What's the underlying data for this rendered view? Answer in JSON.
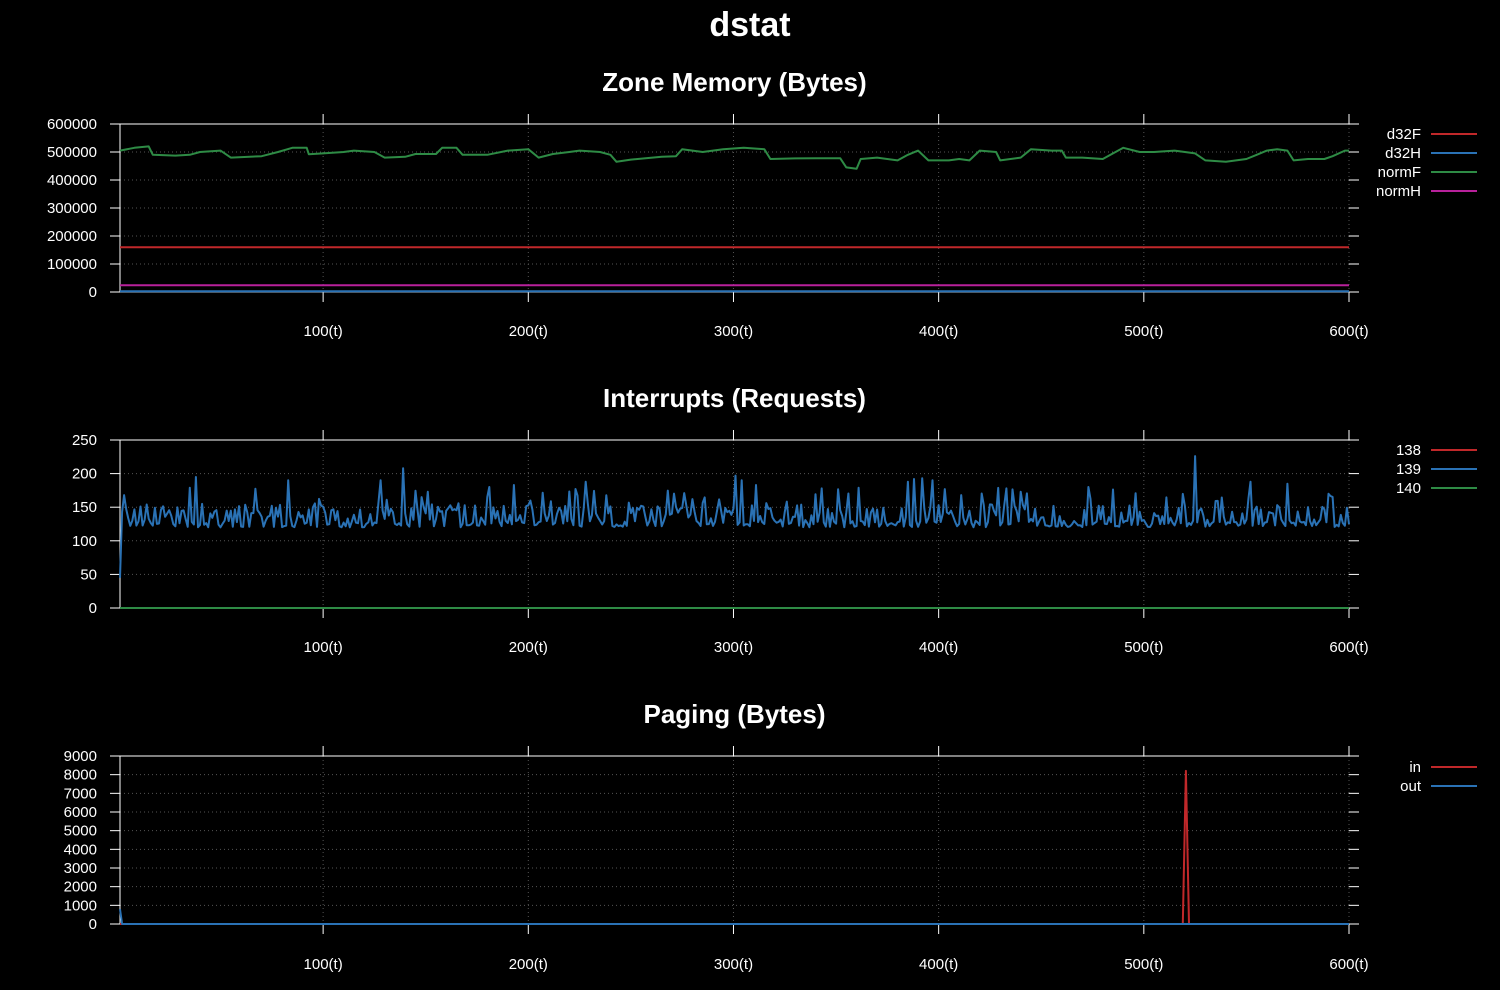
{
  "title": "dstat",
  "colors": {
    "red": "#c0282a",
    "blue": "#2a72b5",
    "green": "#2e8b45",
    "magenta": "#b8219b",
    "axis": "#ffffff",
    "grid": "#555555",
    "background": "#000000"
  },
  "chart_data": [
    {
      "type": "line",
      "title": "Zone Memory (Bytes)",
      "xlim": [
        1,
        600
      ],
      "ylim": [
        0,
        600000
      ],
      "grid": true,
      "legend_position": "right",
      "x_ticks": [
        "100(t)",
        "200(t)",
        "300(t)",
        "400(t)",
        "500(t)",
        "600(t)"
      ],
      "x_tick_values": [
        100,
        200,
        300,
        400,
        500,
        600
      ],
      "y_ticks": [
        "0",
        "100000",
        "200000",
        "300000",
        "400000",
        "500000",
        "600000"
      ],
      "y_tick_values": [
        0,
        100000,
        200000,
        300000,
        400000,
        500000,
        600000
      ],
      "series": [
        {
          "name": "d32F",
          "color": "#c0282a",
          "points": [
            [
              1,
              160000
            ],
            [
              600,
              160000
            ]
          ]
        },
        {
          "name": "d32H",
          "color": "#2a72b5",
          "points": [
            [
              1,
              3000
            ],
            [
              600,
              3000
            ]
          ]
        },
        {
          "name": "normF",
          "color": "#2e8b45",
          "points": [
            [
              1,
              505000
            ],
            [
              8,
              515000
            ],
            [
              15,
              520000
            ],
            [
              17,
              490000
            ],
            [
              28,
              487000
            ],
            [
              35,
              490000
            ],
            [
              40,
              500000
            ],
            [
              50,
              505000
            ],
            [
              55,
              480000
            ],
            [
              70,
              485000
            ],
            [
              78,
              500000
            ],
            [
              85,
              515000
            ],
            [
              92,
              515000
            ],
            [
              93,
              492000
            ],
            [
              100,
              495000
            ],
            [
              110,
              500000
            ],
            [
              115,
              505000
            ],
            [
              125,
              500000
            ],
            [
              130,
              480000
            ],
            [
              140,
              483000
            ],
            [
              145,
              493000
            ],
            [
              155,
              493000
            ],
            [
              158,
              515000
            ],
            [
              165,
              515000
            ],
            [
              168,
              490000
            ],
            [
              180,
              490000
            ],
            [
              190,
              505000
            ],
            [
              200,
              510000
            ],
            [
              205,
              480000
            ],
            [
              212,
              493000
            ],
            [
              220,
              500000
            ],
            [
              225,
              505000
            ],
            [
              235,
              500000
            ],
            [
              240,
              490000
            ],
            [
              243,
              465000
            ],
            [
              250,
              473000
            ],
            [
              265,
              483000
            ],
            [
              272,
              485000
            ],
            [
              275,
              510000
            ],
            [
              285,
              500000
            ],
            [
              295,
              510000
            ],
            [
              305,
              515000
            ],
            [
              315,
              510000
            ],
            [
              318,
              475000
            ],
            [
              330,
              477000
            ],
            [
              340,
              478000
            ],
            [
              352,
              478000
            ],
            [
              355,
              445000
            ],
            [
              360,
              440000
            ],
            [
              362,
              475000
            ],
            [
              370,
              480000
            ],
            [
              380,
              470000
            ],
            [
              385,
              490000
            ],
            [
              390,
              505000
            ],
            [
              395,
              470000
            ],
            [
              405,
              470000
            ],
            [
              410,
              475000
            ],
            [
              415,
              470000
            ],
            [
              420,
              505000
            ],
            [
              428,
              500000
            ],
            [
              430,
              470000
            ],
            [
              440,
              480000
            ],
            [
              445,
              510000
            ],
            [
              455,
              505000
            ],
            [
              460,
              505000
            ],
            [
              462,
              480000
            ],
            [
              470,
              480000
            ],
            [
              480,
              475000
            ],
            [
              485,
              495000
            ],
            [
              490,
              515000
            ],
            [
              498,
              500000
            ],
            [
              505,
              500000
            ],
            [
              515,
              505000
            ],
            [
              520,
              500000
            ],
            [
              525,
              495000
            ],
            [
              530,
              470000
            ],
            [
              540,
              465000
            ],
            [
              550,
              475000
            ],
            [
              555,
              490000
            ],
            [
              560,
              505000
            ],
            [
              565,
              510000
            ],
            [
              570,
              505000
            ],
            [
              573,
              470000
            ],
            [
              580,
              475000
            ],
            [
              588,
              475000
            ],
            [
              592,
              485000
            ],
            [
              598,
              505000
            ],
            [
              600,
              505000
            ]
          ]
        },
        {
          "name": "normH",
          "color": "#b8219b",
          "points": [
            [
              1,
              24000
            ],
            [
              600,
              24000
            ]
          ]
        }
      ]
    },
    {
      "type": "line",
      "title": "Interrupts (Requests)",
      "xlim": [
        1,
        600
      ],
      "ylim": [
        0,
        250
      ],
      "grid": true,
      "legend_position": "right",
      "x_ticks": [
        "100(t)",
        "200(t)",
        "300(t)",
        "400(t)",
        "500(t)",
        "600(t)"
      ],
      "x_tick_values": [
        100,
        200,
        300,
        400,
        500,
        600
      ],
      "y_ticks": [
        "0",
        "50",
        "100",
        "150",
        "200",
        "250"
      ],
      "y_tick_values": [
        0,
        50,
        100,
        150,
        200,
        250
      ],
      "series": [
        {
          "name": "138",
          "color": "#c0282a",
          "points": [
            [
              1,
              0
            ],
            [
              600,
              0
            ]
          ]
        },
        {
          "name": "139",
          "color": "#2a72b5",
          "baseline": 120,
          "variation": 25,
          "start_value": 45,
          "peaks": [
            [
              38,
              195
            ],
            [
              83,
              190
            ],
            [
              128,
              190
            ],
            [
              139,
              208
            ],
            [
              181,
              180
            ],
            [
              193,
              183
            ],
            [
              228,
              188
            ],
            [
              301,
              197
            ],
            [
              304,
              190
            ],
            [
              311,
              183
            ],
            [
              343,
              178
            ],
            [
              385,
              188
            ],
            [
              388,
              192
            ],
            [
              392,
              193
            ],
            [
              397,
              190
            ],
            [
              433,
              178
            ],
            [
              473,
              180
            ],
            [
              525,
              226
            ],
            [
              552,
              188
            ],
            [
              570,
              185
            ],
            [
              590,
              170
            ]
          ]
        },
        {
          "name": "140",
          "color": "#2e8b45",
          "points": [
            [
              1,
              0
            ],
            [
              600,
              0
            ]
          ]
        }
      ]
    },
    {
      "type": "line",
      "title": "Paging (Bytes)",
      "xlim": [
        1,
        600
      ],
      "ylim": [
        0,
        9000
      ],
      "grid": true,
      "legend_position": "right",
      "x_ticks": [
        "100(t)",
        "200(t)",
        "300(t)",
        "400(t)",
        "500(t)",
        "600(t)"
      ],
      "x_tick_values": [
        100,
        200,
        300,
        400,
        500,
        600
      ],
      "y_ticks": [
        "0",
        "1000",
        "2000",
        "3000",
        "4000",
        "5000",
        "6000",
        "7000",
        "8000",
        "9000"
      ],
      "y_tick_values": [
        0,
        1000,
        2000,
        3000,
        4000,
        5000,
        6000,
        7000,
        8000,
        9000
      ],
      "series": [
        {
          "name": "in",
          "color": "#c0282a",
          "points": [
            [
              1,
              0
            ],
            [
              519,
              0
            ],
            [
              520.5,
              8200
            ],
            [
              522,
              0
            ],
            [
              600,
              0
            ]
          ]
        },
        {
          "name": "out",
          "color": "#2a72b5",
          "points": [
            [
              1,
              800
            ],
            [
              2,
              0
            ],
            [
              600,
              0
            ]
          ]
        }
      ]
    }
  ]
}
